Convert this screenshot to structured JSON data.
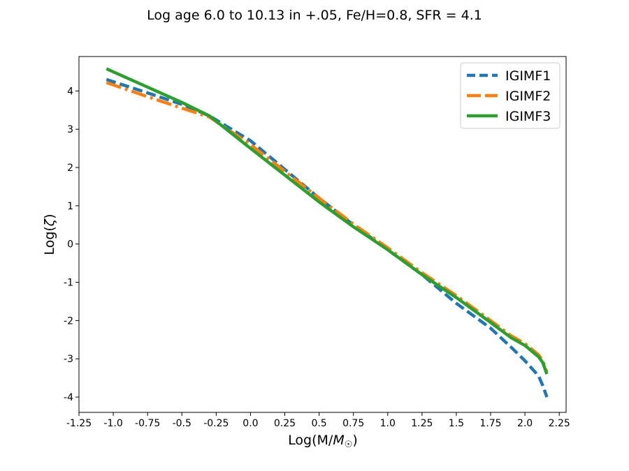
{
  "chart_data": {
    "type": "line",
    "title": "Log age 6.0 to 10.13 in +.05, Fe/H=0.8, SFR = 4.1",
    "xlabel": "Log(M/M☉)",
    "ylabel": "Log(ζ)",
    "xlim": [
      -1.25,
      2.3
    ],
    "ylim": [
      -4.4,
      4.9
    ],
    "xticks": [
      -1.25,
      -1.0,
      -0.75,
      -0.5,
      -0.25,
      0.0,
      0.25,
      0.5,
      0.75,
      1.0,
      1.25,
      1.5,
      1.75,
      2.0,
      2.25
    ],
    "xtick_labels": [
      "-1.25",
      "-1.0",
      "-0.75",
      "-0.5",
      "-0.25",
      "0.0",
      "0.25",
      "0.5",
      "0.75",
      "1.0",
      "1.25",
      "1.5",
      "1.75",
      "2.0",
      "2.25"
    ],
    "yticks": [
      4,
      3,
      2,
      1,
      0,
      -1,
      -2,
      -3,
      -4
    ],
    "ytick_labels": [
      "4",
      "3",
      "2",
      "1",
      "0",
      "-1",
      "-2",
      "-3",
      "-4"
    ],
    "grid": false,
    "legend_position": "top-right",
    "series": [
      {
        "name": "IGIMF1",
        "color": "#1f77b4",
        "style": "dashed",
        "x": [
          -1.05,
          -0.75,
          -0.5,
          -0.3,
          0.0,
          0.25,
          0.5,
          0.75,
          1.0,
          1.25,
          1.5,
          1.75,
          1.9,
          2.0,
          2.05,
          2.1,
          2.13,
          2.16
        ],
        "y": [
          4.3,
          3.95,
          3.65,
          3.35,
          2.7,
          1.95,
          1.2,
          0.5,
          -0.15,
          -0.8,
          -1.55,
          -2.2,
          -2.7,
          -3.05,
          -3.25,
          -3.45,
          -3.7,
          -4.0
        ]
      },
      {
        "name": "IGIMF2",
        "color": "#ff7f0e",
        "style": "dashdot",
        "x": [
          -1.05,
          -0.75,
          -0.5,
          -0.3,
          0.0,
          0.25,
          0.5,
          0.75,
          1.0,
          1.25,
          1.5,
          1.75,
          1.9,
          2.0,
          2.05,
          2.1,
          2.13,
          2.16
        ],
        "y": [
          4.22,
          3.85,
          3.55,
          3.32,
          2.6,
          1.9,
          1.2,
          0.52,
          -0.1,
          -0.75,
          -1.35,
          -2.0,
          -2.4,
          -2.6,
          -2.75,
          -2.9,
          -3.05,
          -3.35
        ]
      },
      {
        "name": "IGIMF3",
        "color": "#2ca02c",
        "style": "solid",
        "x": [
          -1.05,
          -0.75,
          -0.5,
          -0.3,
          0.0,
          0.25,
          0.5,
          0.75,
          1.0,
          1.25,
          1.5,
          1.75,
          1.9,
          2.0,
          2.05,
          2.1,
          2.13,
          2.16
        ],
        "y": [
          4.58,
          4.1,
          3.7,
          3.35,
          2.5,
          1.8,
          1.1,
          0.45,
          -0.15,
          -0.8,
          -1.4,
          -2.05,
          -2.45,
          -2.65,
          -2.8,
          -2.95,
          -3.1,
          -3.4
        ]
      }
    ]
  }
}
